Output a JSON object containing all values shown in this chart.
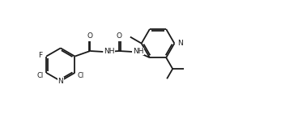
{
  "bg_color": "#ffffff",
  "line_color": "#1a1a1a",
  "line_width": 1.3,
  "font_size": 6.5,
  "fig_width": 3.68,
  "fig_height": 1.52,
  "dpi": 100,
  "xlim": [
    0,
    18
  ],
  "ylim": [
    0,
    8
  ]
}
